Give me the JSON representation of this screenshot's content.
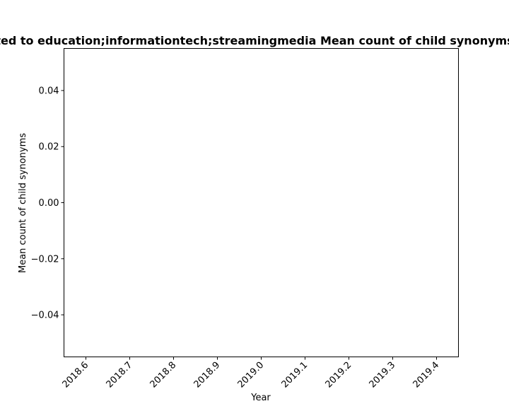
{
  "chart_data": {
    "type": "line",
    "title": "ted to education;informationtech;streamingmedia Mean count of child synonyms",
    "xlabel": "Year",
    "ylabel": "Mean count of child synonyms",
    "x_ticks": [
      "2018.6",
      "2018.7",
      "2018.8",
      "2018.9",
      "2019.0",
      "2019.1",
      "2019.2",
      "2019.3",
      "2019.4"
    ],
    "y_ticks": [
      "0.04",
      "0.02",
      "0.00",
      "−0.02",
      "−0.04"
    ],
    "xlim": [
      2018.55,
      2019.45
    ],
    "ylim": [
      -0.055,
      0.055
    ],
    "x_tick_values": [
      2018.6,
      2018.7,
      2018.8,
      2018.9,
      2019.0,
      2019.1,
      2019.2,
      2019.3,
      2019.4
    ],
    "y_tick_values": [
      0.04,
      0.02,
      0.0,
      -0.02,
      -0.04
    ],
    "series": [],
    "grid": false,
    "frame_color": "#000000"
  }
}
